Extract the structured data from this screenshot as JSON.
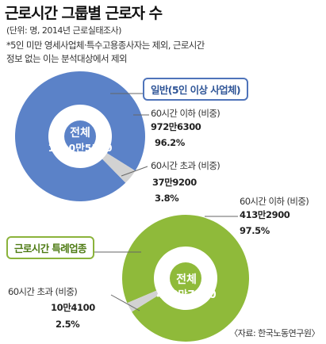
{
  "title": "근로시간 그룹별 근로자 수",
  "unit": "(단위: 명, 2014년 근로실태조사)",
  "note": {
    "line1": "*5인 미만 영세사업체·특수고용종사자는 제외, 근로시간",
    "line2": "정보 없는 이는 분석대상에서 제외"
  },
  "source": "〈자료: 한국노동연구원〉",
  "colors": {
    "blue": "#5b82c8",
    "blue_light": "#d2d2d2",
    "green": "#8fba3a",
    "green_light": "#d2d2d2"
  },
  "chart_data": [
    {
      "type": "pie",
      "badge": "일반(5인 이상 사업체)",
      "total_label": "전체",
      "total_value": "1010만5500",
      "slices": [
        {
          "label": "60시간 이하 (비중)",
          "value_text": "972만6300",
          "percent_text": "96.2%",
          "value": 9726300,
          "percent": 96.2
        },
        {
          "label": "60시간 초과 (비중)",
          "value_text": "37만9200",
          "percent_text": "3.8%",
          "value": 379200,
          "percent": 3.8
        }
      ]
    },
    {
      "type": "pie",
      "badge": "근로시간 특례업종",
      "total_label": "전체",
      "total_value": "423만7000",
      "slices": [
        {
          "label": "60시간 이하 (비중)",
          "value_text": "413만2900",
          "percent_text": "97.5%",
          "value": 4132900,
          "percent": 97.5
        },
        {
          "label": "60시간 초과 (비중)",
          "value_text": "10만4100",
          "percent_text": "2.5%",
          "value": 104100,
          "percent": 2.5
        }
      ]
    }
  ]
}
